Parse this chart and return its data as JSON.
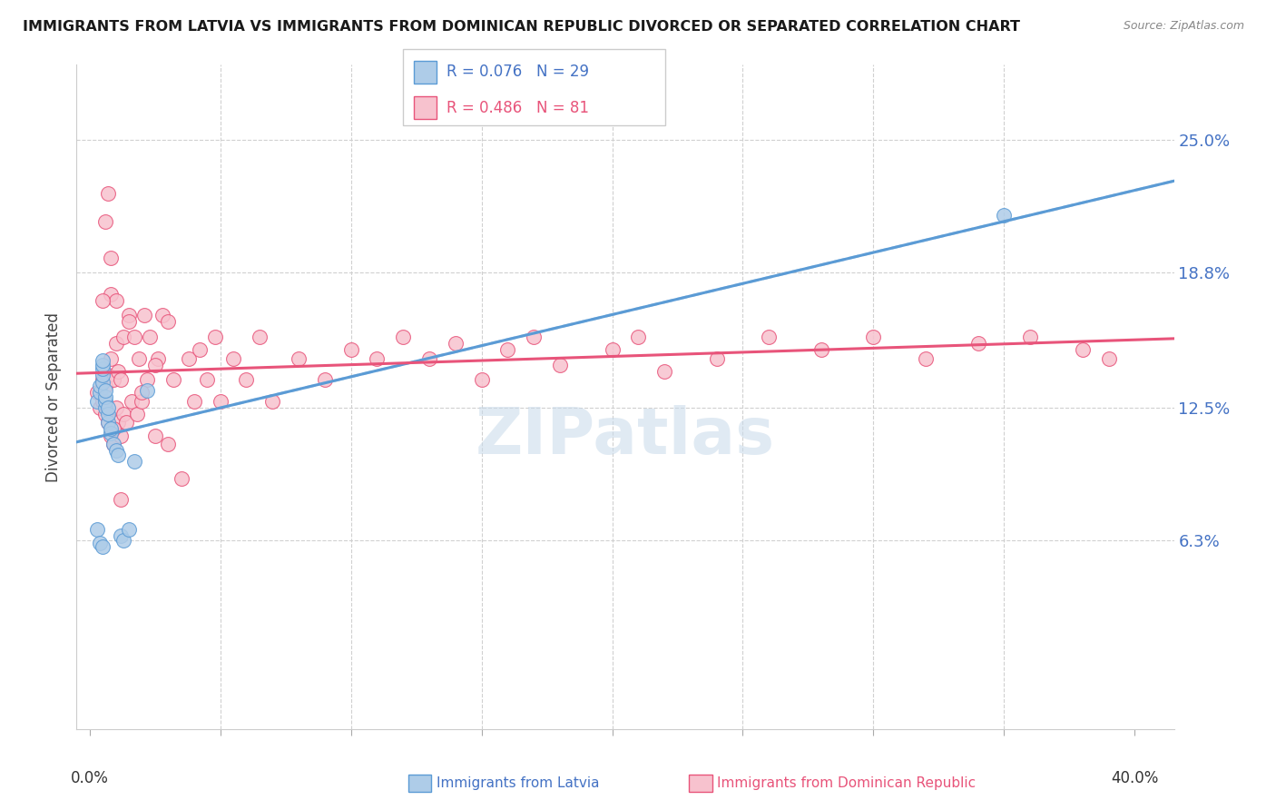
{
  "title": "IMMIGRANTS FROM LATVIA VS IMMIGRANTS FROM DOMINICAN REPUBLIC DIVORCED OR SEPARATED CORRELATION CHART",
  "source": "Source: ZipAtlas.com",
  "ylabel": "Divorced or Separated",
  "ytick_values": [
    0.063,
    0.125,
    0.188,
    0.25
  ],
  "ytick_labels": [
    "6.3%",
    "12.5%",
    "18.8%",
    "25.0%"
  ],
  "xlim": [
    -0.005,
    0.415
  ],
  "ylim": [
    -0.025,
    0.285
  ],
  "legend_r1": "R = 0.076",
  "legend_n1": "N = 29",
  "legend_r2": "R = 0.486",
  "legend_n2": "N = 81",
  "color_latvia_face": "#aecce8",
  "color_latvia_edge": "#5b9bd5",
  "color_domrep_face": "#f7c2ce",
  "color_domrep_edge": "#e8547a",
  "color_trend_blue": "#5b9bd5",
  "color_trend_pink": "#e8547a",
  "color_label_blue": "#4472c4",
  "color_label_pink": "#e8547a",
  "color_grid": "#d0d0d0",
  "watermark": "ZIPatlas",
  "lv_x": [
    0.003,
    0.004,
    0.004,
    0.005,
    0.005,
    0.005,
    0.005,
    0.005,
    0.006,
    0.006,
    0.006,
    0.006,
    0.007,
    0.007,
    0.007,
    0.008,
    0.008,
    0.009,
    0.01,
    0.011,
    0.012,
    0.013,
    0.015,
    0.017,
    0.022,
    0.003,
    0.004,
    0.005,
    0.35
  ],
  "lv_y": [
    0.128,
    0.132,
    0.135,
    0.137,
    0.14,
    0.143,
    0.145,
    0.147,
    0.125,
    0.128,
    0.13,
    0.133,
    0.118,
    0.122,
    0.125,
    0.113,
    0.115,
    0.108,
    0.105,
    0.103,
    0.065,
    0.063,
    0.068,
    0.1,
    0.133,
    0.068,
    0.062,
    0.06,
    0.215
  ],
  "dr_x": [
    0.003,
    0.004,
    0.005,
    0.005,
    0.006,
    0.006,
    0.007,
    0.007,
    0.008,
    0.008,
    0.009,
    0.009,
    0.01,
    0.01,
    0.011,
    0.011,
    0.012,
    0.012,
    0.013,
    0.013,
    0.014,
    0.015,
    0.016,
    0.017,
    0.018,
    0.019,
    0.02,
    0.021,
    0.022,
    0.023,
    0.025,
    0.026,
    0.028,
    0.03,
    0.032,
    0.035,
    0.038,
    0.04,
    0.042,
    0.045,
    0.048,
    0.05,
    0.055,
    0.06,
    0.065,
    0.07,
    0.08,
    0.09,
    0.1,
    0.11,
    0.12,
    0.13,
    0.14,
    0.15,
    0.16,
    0.17,
    0.18,
    0.2,
    0.21,
    0.22,
    0.24,
    0.26,
    0.28,
    0.3,
    0.32,
    0.34,
    0.36,
    0.38,
    0.39,
    0.008,
    0.01,
    0.012,
    0.015,
    0.02,
    0.025,
    0.03,
    0.005,
    0.006,
    0.007,
    0.008,
    0.009
  ],
  "dr_y": [
    0.132,
    0.125,
    0.128,
    0.138,
    0.122,
    0.135,
    0.118,
    0.14,
    0.112,
    0.148,
    0.108,
    0.138,
    0.125,
    0.155,
    0.118,
    0.142,
    0.112,
    0.138,
    0.122,
    0.158,
    0.118,
    0.168,
    0.128,
    0.158,
    0.122,
    0.148,
    0.128,
    0.168,
    0.138,
    0.158,
    0.112,
    0.148,
    0.168,
    0.108,
    0.138,
    0.092,
    0.148,
    0.128,
    0.152,
    0.138,
    0.158,
    0.128,
    0.148,
    0.138,
    0.158,
    0.128,
    0.148,
    0.138,
    0.152,
    0.148,
    0.158,
    0.148,
    0.155,
    0.138,
    0.152,
    0.158,
    0.145,
    0.152,
    0.158,
    0.142,
    0.148,
    0.158,
    0.152,
    0.158,
    0.148,
    0.155,
    0.158,
    0.152,
    0.148,
    0.178,
    0.175,
    0.082,
    0.165,
    0.132,
    0.145,
    0.165,
    0.175,
    0.212,
    0.225,
    0.195,
    0.115
  ]
}
